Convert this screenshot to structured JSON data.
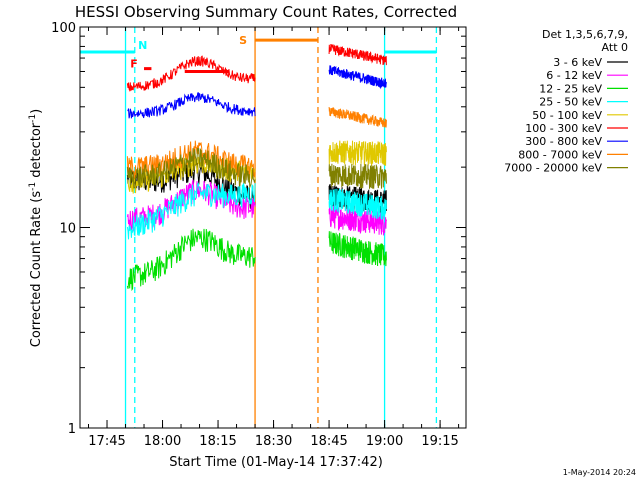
{
  "chart_data": {
    "type": "line",
    "title": "HESSI Observing Summary Count Rates, Corrected",
    "xlabel": "Start Time (01-May-14 17:37:42)",
    "ylabel": "Corrected Count Rate (s",
    "ylabel_sup1": "-1",
    "ylabel_mid": " detector",
    "ylabel_sup2": "-1",
    "ylabel_end": ")",
    "y_scale": "log",
    "ylim": [
      1,
      100
    ],
    "xlim": [
      "17:37:42",
      "19:22:00"
    ],
    "x_ticks": [
      "17:45",
      "18:00",
      "18:15",
      "18:30",
      "18:45",
      "19:00",
      "19:15"
    ],
    "y_ticks": [
      "1",
      "10",
      "100"
    ],
    "legend": {
      "placement": "right",
      "header_line1": "Det 1,3,5,6,7,9,",
      "header_line2": "Att 0"
    },
    "segments": [
      [
        "17:50:30",
        "18:25:00"
      ],
      [
        "18:45:00",
        "19:00:30"
      ]
    ],
    "series": [
      {
        "name": "3 - 6 keV",
        "color": "#000000",
        "seg1": {
          "start": 17.5,
          "end": 14.0,
          "peak": 21.0
        },
        "seg2": {
          "start": 14.5,
          "end": 13.5
        }
      },
      {
        "name": "6 - 12 keV",
        "color": "#ff00ff",
        "seg1": {
          "start": 11.0,
          "end": 12.5,
          "peak": 16.0
        },
        "seg2": {
          "start": 11.5,
          "end": 10.5
        }
      },
      {
        "name": "12 - 25 keV",
        "color": "#00e000",
        "seg1": {
          "start": 5.6,
          "end": 7.2,
          "peak": 9.6
        },
        "seg2": {
          "start": 8.5,
          "end": 7.2
        }
      },
      {
        "name": "25 - 50 keV",
        "color": "#00ffff",
        "seg1": {
          "start": 9.8,
          "end": 15.0,
          "peak": 17.0
        },
        "seg2": {
          "start": 14.0,
          "end": 12.5
        }
      },
      {
        "name": "50 - 100 keV",
        "color": "#e0c800",
        "seg1": {
          "start": 17.0,
          "end": 19.0,
          "peak": 22.0
        },
        "seg2": {
          "start": 24.0,
          "end": 23.5
        }
      },
      {
        "name": "100 - 300 keV",
        "color": "#ff0000",
        "seg1": {
          "start": 50.0,
          "end": 55.0,
          "peak": 70.0
        },
        "seg2": {
          "start": 78.0,
          "end": 68.0
        }
      },
      {
        "name": "300 - 800 keV",
        "color": "#0000ff",
        "seg1": {
          "start": 37.0,
          "end": 38.0,
          "peak": 45.0
        },
        "seg2": {
          "start": 61.0,
          "end": 52.0
        }
      },
      {
        "name": "800 - 7000 keV",
        "color": "#ff8000",
        "seg1": {
          "start": 20.0,
          "end": 20.0,
          "peak": 24.0
        },
        "seg2": {
          "start": 38.0,
          "end": 33.0
        }
      },
      {
        "name": "7000 - 20000 keV",
        "color": "#808000",
        "seg1": {
          "start": 18.0,
          "end": 18.0,
          "peak": 22.0
        },
        "seg2": {
          "start": 18.5,
          "end": 18.0
        }
      }
    ],
    "annotations": {
      "flags": [
        {
          "label": "F",
          "color": "#ff0000",
          "start": "17:55:00",
          "end": "17:57:00",
          "level": 62
        },
        {
          "label": "N",
          "color": "#00ffff",
          "start": "17:37:42",
          "end": "17:52:30",
          "level": 75
        },
        {
          "label": "N",
          "color": "#00ffff",
          "start": "19:00:00",
          "end": "19:14:00",
          "level": 75
        },
        {
          "label": "S",
          "color": "#ff8000",
          "start": "18:25:00",
          "end": "18:42:00",
          "level": 86
        },
        {
          "label": "",
          "color": "#ff0000",
          "start": "18:06:00",
          "end": "18:18:00",
          "level": 60
        }
      ],
      "shown_labels": [
        "F",
        "N",
        "S"
      ],
      "night_start_lines": [
        "17:52:30",
        "19:14:00"
      ],
      "night_end_lines": [
        "17:50:00",
        "19:00:00"
      ],
      "saa_start_lines": [
        "18:25:00"
      ],
      "saa_end_lines": [
        "18:42:00"
      ]
    },
    "timestamp": "1-May-2014 20:24"
  }
}
